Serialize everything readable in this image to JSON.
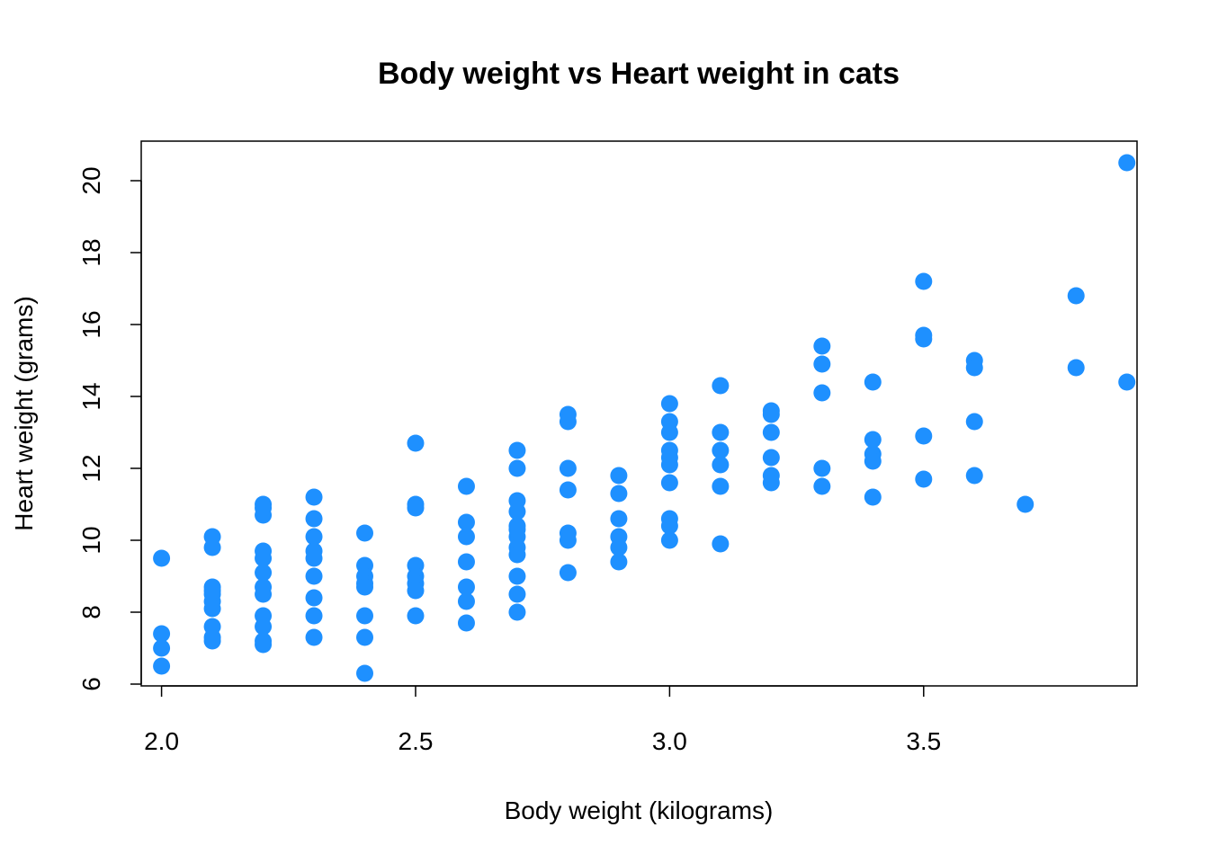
{
  "chart_data": {
    "type": "scatter",
    "title": "Body weight vs Heart weight in cats",
    "xlabel": "Body weight (kilograms)",
    "ylabel": "Heart weight (grams)",
    "xlim": [
      1.96,
      3.92
    ],
    "ylim": [
      5.95,
      21.1
    ],
    "xticks": [
      2.0,
      2.5,
      3.0,
      3.5
    ],
    "xtick_labels": [
      "2.0",
      "2.5",
      "3.0",
      "3.5"
    ],
    "yticks": [
      6,
      8,
      10,
      12,
      14,
      16,
      18,
      20
    ],
    "ytick_labels": [
      "6",
      "8",
      "10",
      "12",
      "14",
      "16",
      "18",
      "20"
    ],
    "grid": false,
    "point_color": "#1E90FF",
    "series": [
      {
        "x": [
          2.0,
          2.0,
          2.0,
          2.0,
          2.1,
          2.1,
          2.1,
          2.1,
          2.1,
          2.1,
          2.1,
          2.1,
          2.1,
          2.1,
          2.2,
          2.2,
          2.2,
          2.2,
          2.2,
          2.2,
          2.2,
          2.2,
          2.2,
          2.2,
          2.2,
          2.2,
          2.3,
          2.3,
          2.3,
          2.3,
          2.3,
          2.3,
          2.3,
          2.3,
          2.3,
          2.4,
          2.4,
          2.4,
          2.4,
          2.4,
          2.4,
          2.4,
          2.4,
          2.5,
          2.5,
          2.5,
          2.5,
          2.5,
          2.5,
          2.5,
          2.5,
          2.6,
          2.6,
          2.6,
          2.6,
          2.6,
          2.6,
          2.6,
          2.7,
          2.7,
          2.7,
          2.7,
          2.7,
          2.7,
          2.7,
          2.7,
          2.7,
          2.7,
          2.7,
          2.7,
          2.8,
          2.8,
          2.8,
          2.8,
          2.8,
          2.8,
          2.8,
          2.9,
          2.9,
          2.9,
          2.9,
          2.9,
          2.9,
          3.0,
          3.0,
          3.0,
          3.0,
          3.0,
          3.0,
          3.0,
          3.0,
          3.0,
          3.0,
          3.1,
          3.1,
          3.1,
          3.1,
          3.1,
          3.1,
          3.2,
          3.2,
          3.2,
          3.2,
          3.2,
          3.2,
          3.3,
          3.3,
          3.3,
          3.3,
          3.3,
          3.4,
          3.4,
          3.4,
          3.4,
          3.4,
          3.5,
          3.5,
          3.5,
          3.5,
          3.5,
          3.6,
          3.6,
          3.6,
          3.6,
          3.7,
          3.8,
          3.8,
          3.9,
          3.9
        ],
        "y": [
          9.5,
          7.4,
          7.0,
          6.5,
          10.1,
          9.8,
          8.7,
          8.5,
          8.3,
          8.1,
          7.6,
          7.3,
          7.2,
          8.6,
          11.0,
          10.7,
          9.7,
          9.5,
          9.1,
          8.7,
          8.5,
          7.9,
          7.6,
          7.2,
          7.1,
          10.9,
          11.2,
          10.6,
          10.1,
          9.7,
          9.5,
          9.0,
          8.4,
          7.9,
          7.3,
          10.2,
          9.3,
          9.0,
          8.8,
          8.7,
          7.9,
          7.3,
          6.3,
          12.7,
          11.0,
          10.9,
          9.3,
          9.0,
          8.8,
          8.6,
          7.9,
          11.5,
          10.5,
          10.1,
          9.4,
          8.7,
          8.3,
          7.7,
          12.5,
          12.0,
          11.1,
          10.8,
          10.4,
          10.1,
          9.8,
          9.6,
          9.0,
          8.5,
          8.0,
          10.3,
          13.5,
          13.3,
          12.0,
          11.4,
          10.2,
          10.0,
          9.1,
          11.8,
          11.3,
          10.6,
          10.1,
          9.8,
          9.4,
          13.8,
          13.3,
          13.0,
          12.5,
          12.3,
          12.1,
          11.6,
          10.6,
          10.4,
          10.0,
          14.3,
          13.0,
          12.5,
          12.1,
          11.5,
          9.9,
          13.6,
          13.5,
          13.0,
          12.3,
          11.8,
          11.6,
          15.4,
          14.9,
          14.1,
          12.0,
          11.5,
          14.4,
          12.8,
          12.4,
          12.2,
          11.2,
          17.2,
          15.7,
          15.6,
          12.9,
          11.7,
          15.0,
          14.8,
          13.3,
          11.8,
          11.0,
          16.8,
          14.8,
          20.5,
          14.4
        ]
      }
    ]
  }
}
